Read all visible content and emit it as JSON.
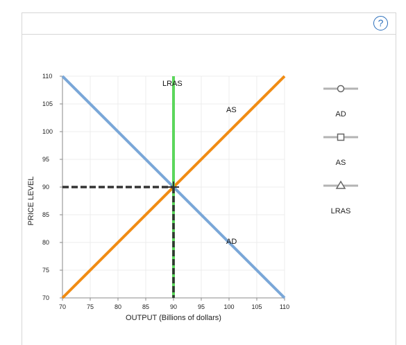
{
  "help_label": "?",
  "chart_data": {
    "type": "line",
    "xlabel": "OUTPUT (Billions of dollars)",
    "ylabel": "PRICE LEVEL",
    "xlim": [
      70,
      110
    ],
    "ylim": [
      70,
      110
    ],
    "x_ticks": [
      70,
      75,
      80,
      85,
      90,
      95,
      100,
      105,
      110
    ],
    "y_ticks": [
      70,
      75,
      80,
      85,
      90,
      95,
      100,
      105,
      110
    ],
    "grid": true,
    "legend_position": "right",
    "series": [
      {
        "name": "AD",
        "color": "#7aa7d8",
        "marker": "circle",
        "points": [
          [
            70,
            110
          ],
          [
            110,
            70
          ]
        ]
      },
      {
        "name": "AS",
        "color": "#f08c14",
        "marker": "square",
        "points": [
          [
            70,
            70
          ],
          [
            110,
            110
          ]
        ]
      },
      {
        "name": "LRAS",
        "color": "#5cd65c",
        "marker": "triangle",
        "points": [
          [
            90,
            70
          ],
          [
            90,
            110
          ]
        ]
      }
    ],
    "annotations": [
      {
        "text": "LRAS",
        "x": 90,
        "y": 110
      },
      {
        "text": "AS",
        "x": 101,
        "y": 104
      },
      {
        "text": "AD",
        "x": 101,
        "y": 80
      }
    ],
    "reference_lines": {
      "x": 90,
      "y": 90,
      "color": "#333333",
      "style": "dashed"
    }
  }
}
